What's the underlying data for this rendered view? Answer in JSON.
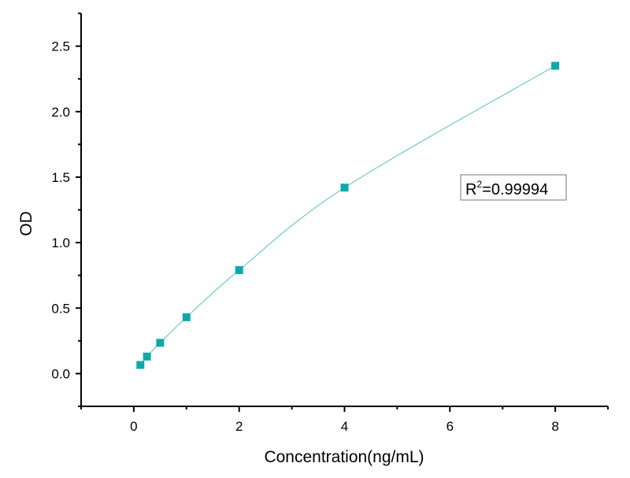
{
  "chart_data": {
    "type": "scatter",
    "xlabel": "Concentration(ng/mL)",
    "ylabel": "OD",
    "xlim": [
      -1,
      9
    ],
    "ylim": [
      -0.25,
      2.75
    ],
    "xticks": [
      "0",
      "2",
      "4",
      "6",
      "8"
    ],
    "yticks": [
      "0.0",
      "0.5",
      "1.0",
      "1.5",
      "2.0",
      "2.5"
    ],
    "grid": false,
    "series": [
      {
        "x": [
          0.125,
          0.25,
          0.5,
          1,
          2,
          4,
          8
        ],
        "y": [
          0.066,
          0.13,
          0.235,
          0.43,
          0.79,
          1.42,
          2.35
        ],
        "marker": "square",
        "fit_line": true
      }
    ],
    "annotation": {
      "prefix": "R",
      "sup": "2",
      "value": "=0.99994"
    },
    "colors": {
      "marker": "#0fa8a8",
      "line": "#6fcaca",
      "axis": "#000000"
    }
  }
}
